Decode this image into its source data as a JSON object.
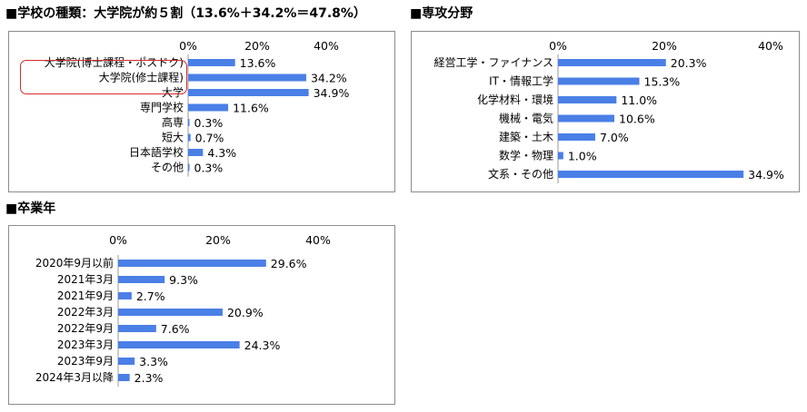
{
  "sections": [
    {
      "title": "■学校の種類：大学院が約５割（13.6%＋34.2%＝47.8%）"
    },
    {
      "title": "■専攻分野"
    },
    {
      "title": "■卒業年"
    }
  ],
  "colors": {
    "bar": "#4a7fe6",
    "highlight": "#d62c2c",
    "frame": "#8c8c8c"
  },
  "chart_data": [
    {
      "type": "bar",
      "orientation": "horizontal",
      "title": "■学校の種類：大学院が約５割（13.6%＋34.2%＝47.8%）",
      "categories": [
        "大学院(博士課程・ポスドク)",
        "大学院(修士課程)",
        "大学",
        "専門学校",
        "高専",
        "短大",
        "日本語学校",
        "その他"
      ],
      "values": [
        13.6,
        34.2,
        34.9,
        11.6,
        0.3,
        0.7,
        4.3,
        0.3
      ],
      "value_labels": [
        "13.6%",
        "34.2%",
        "34.9%",
        "11.6%",
        "0.3%",
        "0.7%",
        "4.3%",
        "0.3%"
      ],
      "xlim": [
        0,
        40
      ],
      "ticks": [
        "0%",
        "20%",
        "40%"
      ],
      "highlighted_categories": [
        "大学院(博士課程・ポスドク)",
        "大学院(修士課程)"
      ]
    },
    {
      "type": "bar",
      "orientation": "horizontal",
      "title": "■専攻分野",
      "categories": [
        "経営工学・ファイナンス",
        "IT・情報工学",
        "化学材料・環境",
        "機械・電気",
        "建築・土木",
        "数学・物理",
        "文系・その他"
      ],
      "values": [
        20.3,
        15.3,
        11.0,
        10.6,
        7.0,
        1.0,
        34.9
      ],
      "value_labels": [
        "20.3%",
        "15.3%",
        "11.0%",
        "10.6%",
        "7.0%",
        "1.0%",
        "34.9%"
      ],
      "xlim": [
        0,
        40
      ],
      "ticks": [
        "0%",
        "20%",
        "40%"
      ]
    },
    {
      "type": "bar",
      "orientation": "horizontal",
      "title": "■卒業年",
      "categories": [
        "2020年9月以前",
        "2021年3月",
        "2021年9月",
        "2022年3月",
        "2022年9月",
        "2023年3月",
        "2023年9月",
        "2024年3月以降"
      ],
      "values": [
        29.6,
        9.3,
        2.7,
        20.9,
        7.6,
        24.3,
        3.3,
        2.3
      ],
      "value_labels": [
        "29.6%",
        "9.3%",
        "2.7%",
        "20.9%",
        "7.6%",
        "24.3%",
        "3.3%",
        "2.3%"
      ],
      "xlim": [
        0,
        40
      ],
      "ticks": [
        "0%",
        "20%",
        "40%"
      ]
    }
  ]
}
